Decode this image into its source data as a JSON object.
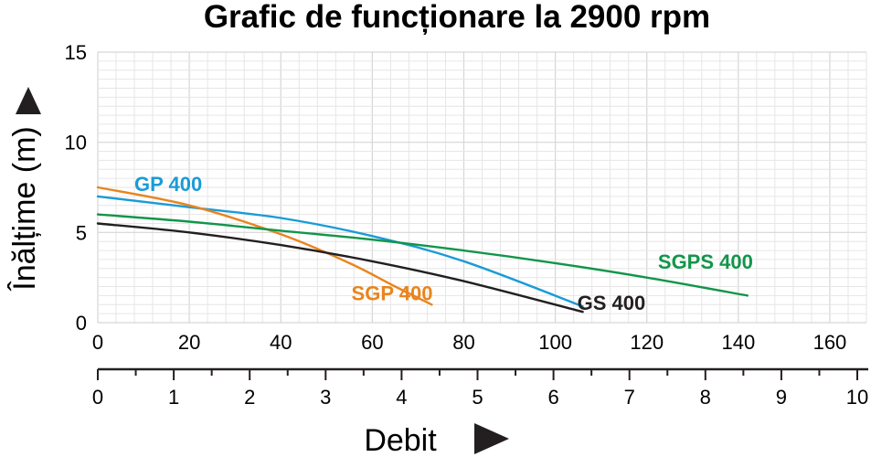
{
  "chart_data": {
    "type": "line",
    "title": "Grafic de funcționare la 2900 rpm",
    "ylabel": "Înălțime (m)",
    "xlabel": "Debit",
    "ylim": [
      0,
      15
    ],
    "yticks": [
      "0",
      "5",
      "10",
      "15"
    ],
    "x_top_ticks": [
      "0",
      "20",
      "40",
      "60",
      "80",
      "100",
      "120",
      "140",
      "160"
    ],
    "x_top_lim": [
      0,
      168
    ],
    "x_bottom_ticks": [
      "0",
      "1",
      "2",
      "3",
      "4",
      "5",
      "6",
      "7",
      "8",
      "9",
      "10"
    ],
    "x_bottom_lim": [
      0,
      10
    ],
    "grid": true,
    "series": [
      {
        "name": "GP 400",
        "color": "#1a9bd7",
        "x": [
          0,
          20,
          40,
          60,
          80,
          106
        ],
        "y": [
          7.0,
          6.4,
          5.8,
          4.8,
          3.4,
          0.9
        ]
      },
      {
        "name": "SGP 400",
        "color": "#e8851e",
        "x": [
          0,
          20,
          40,
          55,
          65,
          73
        ],
        "y": [
          7.5,
          6.5,
          4.9,
          3.3,
          2.0,
          1.0
        ]
      },
      {
        "name": "GS 400",
        "color": "#231f20",
        "x": [
          0,
          20,
          40,
          60,
          80,
          106
        ],
        "y": [
          5.5,
          5.0,
          4.3,
          3.4,
          2.3,
          0.6
        ]
      },
      {
        "name": "SGPS 400",
        "color": "#12954a",
        "x": [
          0,
          20,
          40,
          60,
          80,
          100,
          120,
          142
        ],
        "y": [
          6.0,
          5.6,
          5.1,
          4.6,
          4.0,
          3.3,
          2.5,
          1.5
        ]
      }
    ]
  }
}
